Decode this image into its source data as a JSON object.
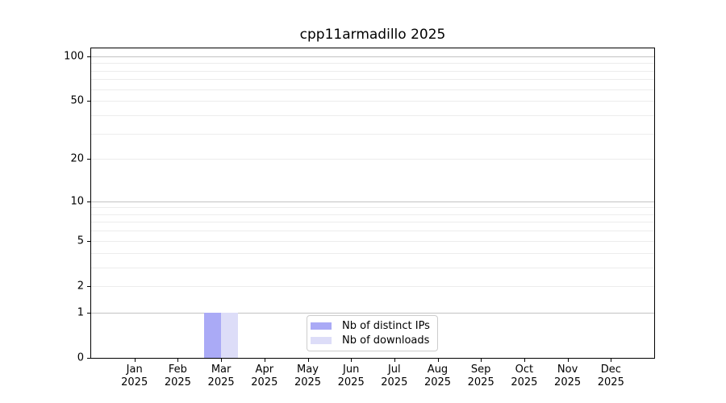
{
  "title": "cpp11armadillo 2025",
  "colors": {
    "distinct_ips": "#aaaaf6",
    "downloads": "#ddddf8",
    "grid_major": "#c3c3c3",
    "grid_minor": "#ececec",
    "spine": "#000000",
    "legend_border": "#cccccc",
    "background": "#ffffff"
  },
  "chart_data": {
    "type": "bar",
    "title": "cpp11armadillo 2025",
    "categories": [
      "Jan",
      "Feb",
      "Mar",
      "Apr",
      "May",
      "Jun",
      "Jul",
      "Aug",
      "Sep",
      "Oct",
      "Nov",
      "Dec"
    ],
    "category_year": "2025",
    "series": [
      {
        "name": "Nb of distinct IPs",
        "color": "#aaaaf6",
        "values": [
          0,
          0,
          1,
          0,
          0,
          0,
          0,
          0,
          0,
          0,
          0,
          0
        ]
      },
      {
        "name": "Nb of downloads",
        "color": "#ddddf8",
        "values": [
          0,
          0,
          1,
          0,
          0,
          0,
          0,
          0,
          0,
          0,
          0,
          0
        ]
      }
    ],
    "xlabel": "",
    "ylabel": "",
    "y_axis": {
      "scale": "log10(1+y)",
      "labeled_ticks": [
        0,
        1,
        2,
        5,
        10,
        20,
        50,
        100
      ],
      "major_gridlines": [
        1,
        10,
        100
      ],
      "minor_gridlines": [
        2,
        3,
        4,
        5,
        6,
        7,
        8,
        9,
        20,
        30,
        40,
        50,
        60,
        70,
        80,
        90
      ],
      "ylim": [
        0,
        113
      ]
    },
    "grid": true,
    "legend": {
      "position": "lower center inside",
      "entries": [
        "Nb of distinct IPs",
        "Nb of downloads"
      ]
    }
  }
}
